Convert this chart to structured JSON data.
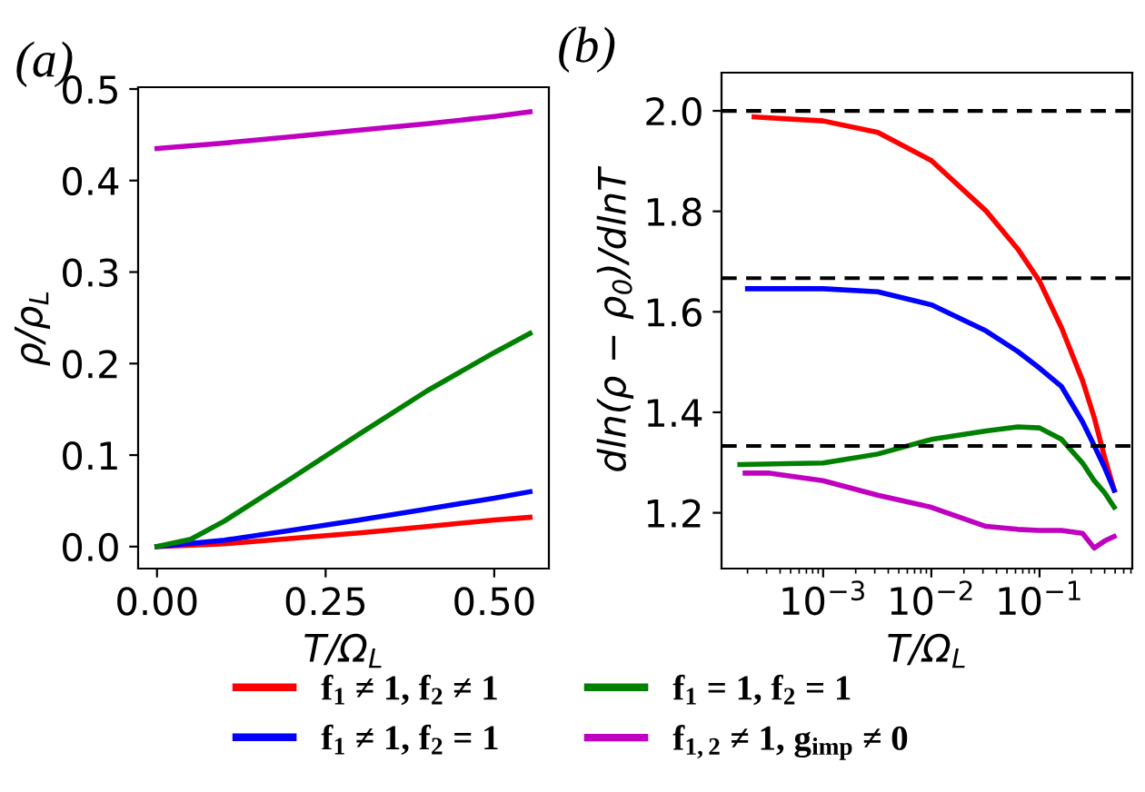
{
  "chart_data": [
    {
      "type": "line",
      "title": "(a)",
      "xlabel": "T/Ω$_{L}$",
      "ylabel": "ρ/ρ$_{L}$",
      "xlim": [
        -0.028,
        0.581
      ],
      "ylim": [
        -0.024,
        0.502
      ],
      "xticks": [
        {
          "value": 0,
          "label": "0.00"
        },
        0.25,
        {
          "value": 0.5,
          "label": "0.50"
        }
      ],
      "yticks": [
        {
          "value": 0,
          "label": "0.0"
        },
        0.1,
        0.2,
        0.3,
        0.4,
        0.5
      ],
      "legend": "bottom",
      "grid": false,
      "series": [
        {
          "name": "f$_{1}$ ≠ 1, f$_{2}$ ≠ 1",
          "color": "#ff0000",
          "x": [
            0,
            0.1,
            0.2,
            0.3,
            0.4,
            0.5,
            0.553
          ],
          "values": [
            0,
            0.003,
            0.009,
            0.015,
            0.022,
            0.029,
            0.032
          ]
        },
        {
          "name": "f$_{1}$ ≠ 1, f$_{2}$ = 1",
          "color": "#0000ff",
          "x": [
            0,
            0.1,
            0.2,
            0.3,
            0.4,
            0.5,
            0.553
          ],
          "values": [
            0,
            0.007,
            0.018,
            0.029,
            0.041,
            0.053,
            0.06
          ]
        },
        {
          "name": "f$_{1}$ = 1, f$_{2}$ = 1",
          "color": "#008000",
          "x": [
            0,
            0.05,
            0.1,
            0.2,
            0.3,
            0.4,
            0.5,
            0.553
          ],
          "values": [
            0,
            0.008,
            0.028,
            0.075,
            0.123,
            0.17,
            0.212,
            0.233
          ]
        },
        {
          "name": "f$_{1,2}$ ≠ 1, g$_{imp}$ ≠ 0",
          "color": "#c000c0",
          "x": [
            0,
            0.1,
            0.2,
            0.3,
            0.4,
            0.5,
            0.553
          ],
          "values": [
            0.435,
            0.441,
            0.448,
            0.455,
            0.462,
            0.47,
            0.475
          ]
        }
      ]
    },
    {
      "type": "line",
      "title": "(b)",
      "xlabel": "T/Ω$_{L}$",
      "ylabel": "dln(ρ − ρ$_{0}$)/dlnT",
      "log": "x",
      "xlim": [
        0.000115,
        0.72
      ],
      "ylim": [
        1.089,
        2.076
      ],
      "xticks": [
        {
          "value": 0.001,
          "label": "10$^{−3}$"
        },
        {
          "value": 0.01,
          "label": "10$^{−2}$"
        },
        {
          "value": 0.1,
          "label": "10$^{−1}$"
        }
      ],
      "yticks": [
        1.2,
        1.4,
        1.6,
        1.8,
        {
          "value": 2,
          "label": "2.0"
        }
      ],
      "grid": false,
      "ref_lines": [
        {
          "axis": "y",
          "value": 2.0,
          "color": "#000000",
          "line_style": "dashed"
        },
        {
          "axis": "y",
          "value": 1.667,
          "color": "#000000",
          "line_style": "dashed"
        },
        {
          "axis": "y",
          "value": 1.333,
          "color": "#000000",
          "line_style": "dashed"
        }
      ],
      "series": [
        {
          "color": "#ff0000",
          "x": [
            0.00023,
            0.00032,
            0.001,
            0.0032,
            0.01,
            0.032,
            0.063,
            0.1,
            0.16,
            0.25,
            0.32,
            0.4,
            0.49
          ],
          "values": [
            1.988,
            1.986,
            1.98,
            1.957,
            1.901,
            1.801,
            1.725,
            1.661,
            1.568,
            1.463,
            1.39,
            1.31,
            1.245
          ]
        },
        {
          "color": "#0000ff",
          "x": [
            0.0002,
            0.001,
            0.0032,
            0.01,
            0.032,
            0.063,
            0.1,
            0.16,
            0.25,
            0.32,
            0.4,
            0.49
          ],
          "values": [
            1.646,
            1.646,
            1.64,
            1.614,
            1.562,
            1.521,
            1.488,
            1.451,
            1.381,
            1.334,
            1.29,
            1.245
          ]
        },
        {
          "color": "#008000",
          "x": [
            0.00017,
            0.001,
            0.0032,
            0.01,
            0.032,
            0.063,
            0.1,
            0.16,
            0.25,
            0.32,
            0.4,
            0.49
          ],
          "values": [
            1.296,
            1.299,
            1.317,
            1.346,
            1.363,
            1.371,
            1.369,
            1.346,
            1.299,
            1.264,
            1.24,
            1.211
          ]
        },
        {
          "color": "#c000c0",
          "x": [
            0.00019,
            0.00032,
            0.001,
            0.0032,
            0.01,
            0.032,
            0.063,
            0.1,
            0.16,
            0.25,
            0.32,
            0.4,
            0.49
          ],
          "values": [
            1.279,
            1.279,
            1.264,
            1.235,
            1.211,
            1.173,
            1.167,
            1.165,
            1.165,
            1.159,
            1.13,
            1.144,
            1.153
          ]
        }
      ]
    }
  ]
}
